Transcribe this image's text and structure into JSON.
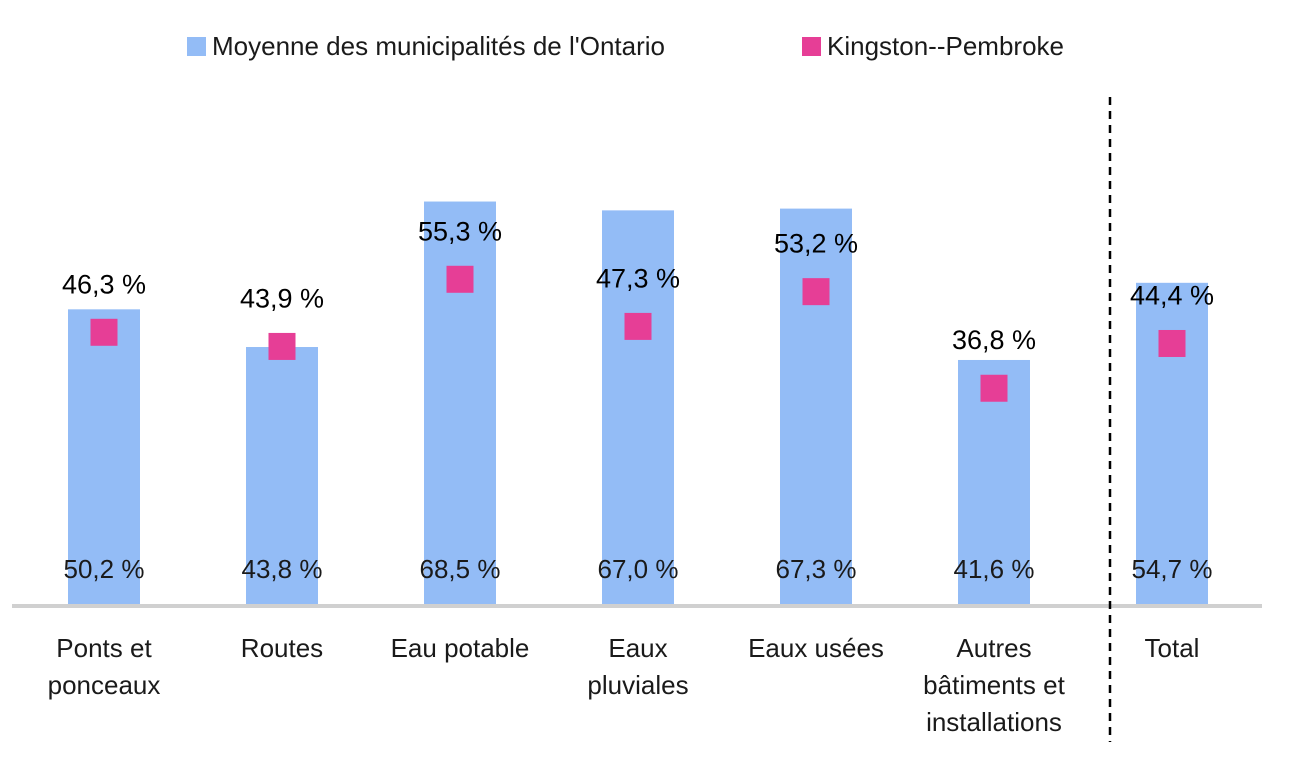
{
  "chart_data": {
    "type": "bar",
    "categories": [
      [
        "Ponts et",
        "ponceaux"
      ],
      [
        "Routes"
      ],
      [
        "Eau potable"
      ],
      [
        "Eaux",
        "pluviales"
      ],
      [
        "Eaux usées"
      ],
      [
        "Autres",
        "bâtiments et",
        "installations"
      ],
      [
        "Total"
      ]
    ],
    "series": [
      {
        "name": "Moyenne des municipalités de l'Ontario",
        "type": "bar",
        "color": "#93bcf6",
        "values": [
          50.2,
          43.8,
          68.5,
          67.0,
          67.3,
          41.6,
          54.7
        ],
        "labels": [
          "50,2 %",
          "43,8 %",
          "68,5 %",
          "67,0 %",
          "67,3 %",
          "41,6 %",
          "54,7 %"
        ]
      },
      {
        "name": "Kingston--Pembroke",
        "type": "marker",
        "color": "#e63e96",
        "values": [
          46.3,
          43.9,
          55.3,
          47.3,
          53.2,
          36.8,
          44.4
        ],
        "labels": [
          "46,3 %",
          "43,9 %",
          "55,3 %",
          "47,3 %",
          "53,2 %",
          "36,8 %",
          "44,4 %"
        ]
      }
    ],
    "ylim": [
      0,
      100
    ],
    "legend_position": "top",
    "grid": false,
    "separator_before_last": true
  }
}
